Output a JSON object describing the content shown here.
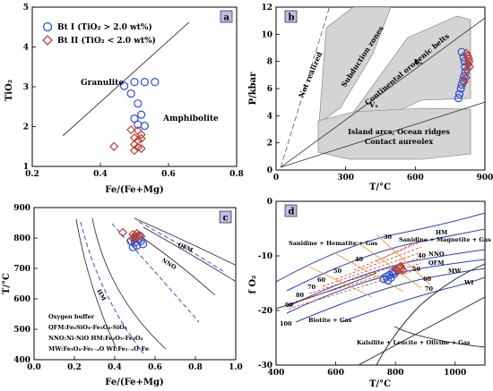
{
  "chart_data": [
    {
      "type": "scatter",
      "panel": "a",
      "xlabel": "Fe/(Fe+Mg)",
      "ylabel": "TiO₂",
      "xlim": [
        0.2,
        0.8
      ],
      "ylim": [
        1,
        5
      ],
      "xticks": [
        "0.2",
        "0.4",
        "0.6",
        "0.8"
      ],
      "yticks": [
        "1",
        "2",
        "3",
        "4",
        "5"
      ],
      "legend_position": "top-left",
      "series": [
        {
          "name": "Bt I (TiO₂ > 2.0 wt%)",
          "color": "#2a4fd6",
          "marker": "circle",
          "x": [
            0.47,
            0.5,
            0.53,
            0.56,
            0.49,
            0.51,
            0.52,
            0.5,
            0.51,
            0.53
          ],
          "y": [
            3.02,
            3.12,
            3.12,
            3.12,
            2.83,
            2.58,
            2.3,
            2.2,
            2.05,
            2.02
          ]
        },
        {
          "name": "Bt II (TiO₂ < 2.0 wt%)",
          "color": "#b5413a",
          "marker": "diamond",
          "x": [
            0.44,
            0.49,
            0.51,
            0.52,
            0.5,
            0.51,
            0.52,
            0.5,
            0.51,
            0.52,
            0.5
          ],
          "y": [
            1.5,
            1.92,
            1.9,
            1.8,
            1.72,
            1.65,
            1.7,
            1.55,
            1.48,
            1.45,
            1.4
          ]
        }
      ],
      "boundary": {
        "x": [
          0.29,
          0.66
        ],
        "y": [
          1.77,
          4.62
        ]
      },
      "annotations": [
        "Granulite",
        "Amphibolite"
      ]
    },
    {
      "type": "scatter",
      "panel": "b",
      "xlabel": "T/°C",
      "ylabel": "P/kbar",
      "xlim": [
        0,
        900
      ],
      "ylim": [
        0,
        12
      ],
      "xticks": [
        "0",
        "300",
        "600",
        "900"
      ],
      "yticks": [
        "0",
        "2",
        "4",
        "6",
        "8",
        "10",
        "12"
      ],
      "series": [
        {
          "name": "Bt I",
          "color": "#2a4fd6",
          "marker": "circle",
          "x": [
            800,
            808,
            812,
            814,
            816,
            810,
            806,
            800,
            796,
            790,
            786
          ],
          "y": [
            8.7,
            8.3,
            8.0,
            7.6,
            7.2,
            6.9,
            6.6,
            6.3,
            6.0,
            5.6,
            5.3
          ]
        },
        {
          "name": "Bt II",
          "color": "#b5413a",
          "marker": "diamond",
          "x": [
            820,
            826,
            830,
            832,
            828,
            834,
            822,
            818,
            810
          ],
          "y": [
            8.6,
            8.4,
            8.2,
            8.0,
            7.8,
            7.6,
            7.4,
            6.8,
            6.5
          ]
        }
      ],
      "annotations": [
        "Not realized",
        "Subduction zones",
        "Continental orogenic belts",
        "Island arcs, Ocean ridges",
        "Contact aureolex",
        "Vₛ",
        "Vₓ"
      ]
    },
    {
      "type": "scatter",
      "panel": "c",
      "xlabel": "Fe/(Fe+Mg)",
      "ylabel": "T/°C",
      "xlim": [
        0,
        1.0
      ],
      "ylim": [
        400,
        900
      ],
      "xticks": [
        "0.0",
        "0.2",
        "0.4",
        "0.6",
        "0.8",
        "1.0"
      ],
      "yticks": [
        "400",
        "500",
        "600",
        "700",
        "800",
        "900"
      ],
      "series": [
        {
          "name": "Bt I",
          "color": "#2a4fd6",
          "marker": "circle",
          "x": [
            0.48,
            0.5,
            0.52,
            0.54,
            0.49,
            0.51,
            0.53,
            0.5,
            0.52
          ],
          "y": [
            790,
            785,
            795,
            780,
            770,
            775,
            790,
            800,
            805
          ]
        },
        {
          "name": "Bt II",
          "color": "#b5413a",
          "marker": "diamond",
          "x": [
            0.44,
            0.49,
            0.5,
            0.51,
            0.52,
            0.5,
            0.51,
            0.53,
            0.49
          ],
          "y": [
            818,
            812,
            808,
            815,
            810,
            800,
            804,
            806,
            798
          ]
        }
      ],
      "buffer_labels": [
        "QFM",
        "NNO",
        "HM"
      ],
      "buffer_legend": {
        "title": "Oxygen buffer",
        "lines": [
          "QFM:Fe₂SiO₄-Fe₃O₄-SiO₂",
          "NNO:Ni-NiO   HM:Fe₂O₃-Fe₃O₄",
          "MW:Fe₃O₄-Fe₁₋ₓO   WI:Fe₁₋ₓO-Fe"
        ]
      }
    },
    {
      "type": "scatter",
      "panel": "d",
      "xlabel": "T/°C",
      "ylabel": "f O₂",
      "xlim": [
        400,
        1100
      ],
      "ylim": [
        -30,
        0
      ],
      "xticks": [
        "400",
        "600",
        "800",
        "1000"
      ],
      "yticks": [
        "0",
        "-10",
        "-20",
        "-30"
      ],
      "series": [
        {
          "name": "Bt I",
          "color": "#2a4fd6",
          "marker": "circle",
          "x": [
            760,
            770,
            780,
            790,
            800,
            785,
            795,
            775
          ],
          "y": [
            -14.2,
            -13.8,
            -13.5,
            -13.0,
            -12.8,
            -14.0,
            -13.3,
            -14.5
          ]
        },
        {
          "name": "Bt II",
          "color": "#b5413a",
          "marker": "diamond",
          "x": [
            800,
            810,
            815,
            820,
            825,
            808,
            818
          ],
          "y": [
            -12.4,
            -12.2,
            -12.0,
            -12.3,
            -12.6,
            -12.8,
            -11.9
          ]
        }
      ],
      "field_labels": [
        "Sanidine + Hematite + Gas",
        "Sanidine + Magnetite + Gas",
        "Biotite + Gas",
        "Kalsilite + Leucite + Olivine + Gas"
      ],
      "buffer_labels": [
        "HM",
        "NNO",
        "QFM",
        "MW",
        "WI"
      ],
      "isopleth_labels": [
        "30",
        "40",
        "50",
        "60",
        "70",
        "80",
        "90",
        "100",
        "40",
        "50",
        "60",
        "70"
      ]
    }
  ]
}
